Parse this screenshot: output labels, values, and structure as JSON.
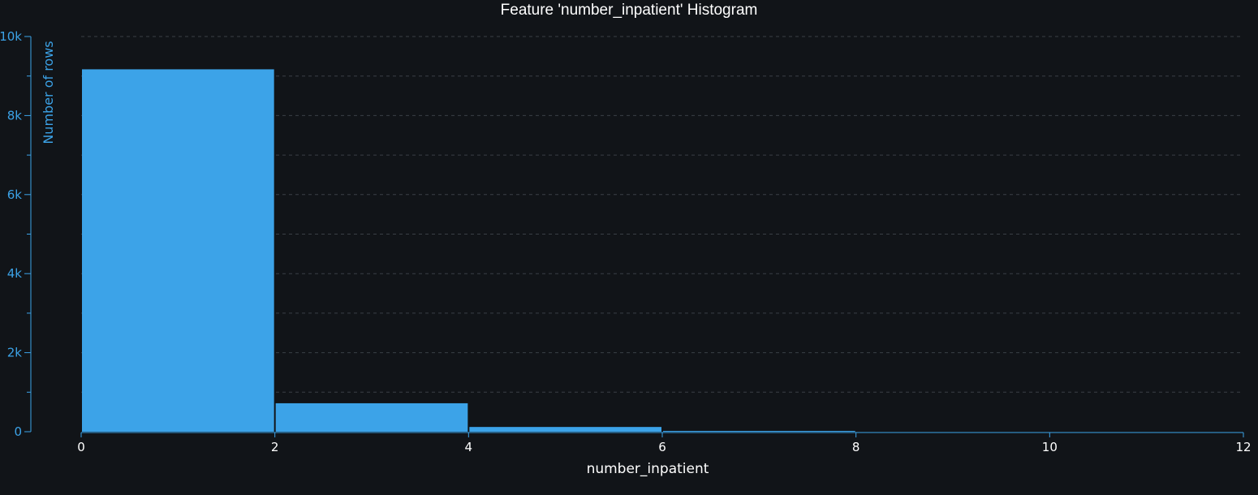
{
  "chart_data": {
    "type": "bar",
    "title": "Feature 'number_inpatient' Histogram",
    "xlabel": "number_inpatient",
    "ylabel": "Number of rows",
    "bins": [
      {
        "x0": 0,
        "x1": 2,
        "count": 9170
      },
      {
        "x0": 2,
        "x1": 4,
        "count": 720
      },
      {
        "x0": 4,
        "x1": 6,
        "count": 120
      },
      {
        "x0": 6,
        "x1": 8,
        "count": 20
      }
    ],
    "xlim": [
      0,
      12
    ],
    "ylim": [
      0,
      10000
    ],
    "x_ticks": [
      0,
      2,
      4,
      6,
      8,
      10,
      12
    ],
    "x_tick_labels": [
      "0",
      "2",
      "4",
      "6",
      "8",
      "10",
      "12"
    ],
    "y_ticks": [
      0,
      2000,
      4000,
      6000,
      8000,
      10000
    ],
    "y_tick_labels": [
      "0",
      "2k",
      "4k",
      "6k",
      "8k",
      "10k"
    ],
    "y_minor_ticks": [
      1000,
      3000,
      5000,
      7000,
      9000
    ],
    "grid": true,
    "legend": "none",
    "colors": {
      "bar": "#3ca3e8",
      "axis": "#3ca3e8",
      "grid": "#3a3f46",
      "background": "#111418",
      "text": "#ffffff"
    }
  }
}
